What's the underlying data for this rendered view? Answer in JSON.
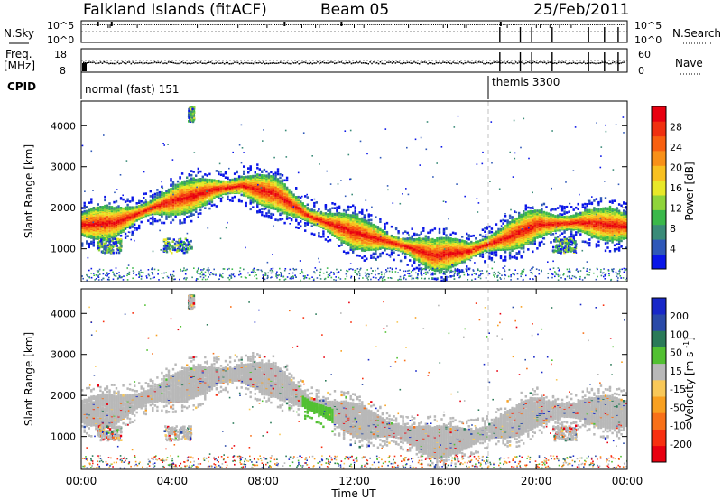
{
  "header": {
    "station": "Falkland Islands (fitACF)",
    "beam": "Beam 05",
    "date": "25/Feb/2011"
  },
  "strips": {
    "nsky_label": "N.Sky",
    "nsky_ticks": [
      "10^5",
      "10^0"
    ],
    "nsearch_label": "N.Search",
    "nsearch_ticks": [
      "10^5",
      "10^0"
    ],
    "freq_label": "Freq.",
    "freq_unit": "[MHz]",
    "freq_ticks": [
      "18",
      "8"
    ],
    "nave_label": "Nave",
    "nave_ticks": [
      "60",
      "0"
    ],
    "cpid_label": "CPID",
    "cpid_segments": [
      {
        "name": "normal (fast) 151",
        "start_hour": 0
      },
      {
        "name": "themis 3300",
        "start_hour": 18
      }
    ]
  },
  "chart_data": [
    {
      "type": "heatmap",
      "name": "power",
      "ylabel": "Slant Range [km]",
      "xlabel": "",
      "yticks": [
        1000,
        2000,
        3000,
        4000
      ],
      "ylim": [
        200,
        4600
      ],
      "xlim_hours": [
        0,
        24
      ],
      "colorbar": {
        "label": "Power [dB]",
        "tick_values": [
          "4",
          "8",
          "12",
          "16",
          "20",
          "24",
          "28"
        ],
        "colors": [
          "#0a16e8",
          "#2f58b8",
          "#3a8b78",
          "#3ab84a",
          "#8fd43a",
          "#e8e828",
          "#f8c020",
          "#f89018",
          "#f86010",
          "#f03010",
          "#e80010"
        ]
      },
      "echo_band": [
        {
          "hour": 0.0,
          "range_km": 1600
        },
        {
          "hour": 1.5,
          "range_km": 1650
        },
        {
          "hour": 3.0,
          "range_km": 2000
        },
        {
          "hour": 4.5,
          "range_km": 2250
        },
        {
          "hour": 5.8,
          "range_km": 2450
        },
        {
          "hour": 7.0,
          "range_km": 2550
        },
        {
          "hour": 8.5,
          "range_km": 2350
        },
        {
          "hour": 10.0,
          "range_km": 1800
        },
        {
          "hour": 12.0,
          "range_km": 1400
        },
        {
          "hour": 14.0,
          "range_km": 1100
        },
        {
          "hour": 15.5,
          "range_km": 850
        },
        {
          "hour": 17.0,
          "range_km": 950
        },
        {
          "hour": 18.5,
          "range_km": 1250
        },
        {
          "hour": 20.0,
          "range_km": 1600
        },
        {
          "hour": 22.0,
          "range_km": 1650
        },
        {
          "hour": 24.0,
          "range_km": 1550
        }
      ]
    },
    {
      "type": "heatmap",
      "name": "velocity",
      "ylabel": "Slant Range [km]",
      "xlabel": "Time UT",
      "yticks": [
        1000,
        2000,
        3000,
        4000
      ],
      "ylim": [
        200,
        4600
      ],
      "xlim_hours": [
        0,
        24
      ],
      "colorbar": {
        "label": "Velocity [m s^-1]",
        "tick_values": [
          "200",
          "100",
          "50",
          "15",
          "-15",
          "-50",
          "-100",
          "-200"
        ],
        "colors": [
          "#1828c8",
          "#2a4aa8",
          "#2a7a58",
          "#52c032",
          "#b8b8b8",
          "#f8c858",
          "#f8a020",
          "#f87018",
          "#f83010",
          "#e80010"
        ]
      }
    }
  ],
  "time_axis": {
    "label": "Time UT",
    "ticks": [
      "00:00",
      "04:00",
      "08:00",
      "12:00",
      "16:00",
      "20:00",
      "00:00"
    ]
  }
}
